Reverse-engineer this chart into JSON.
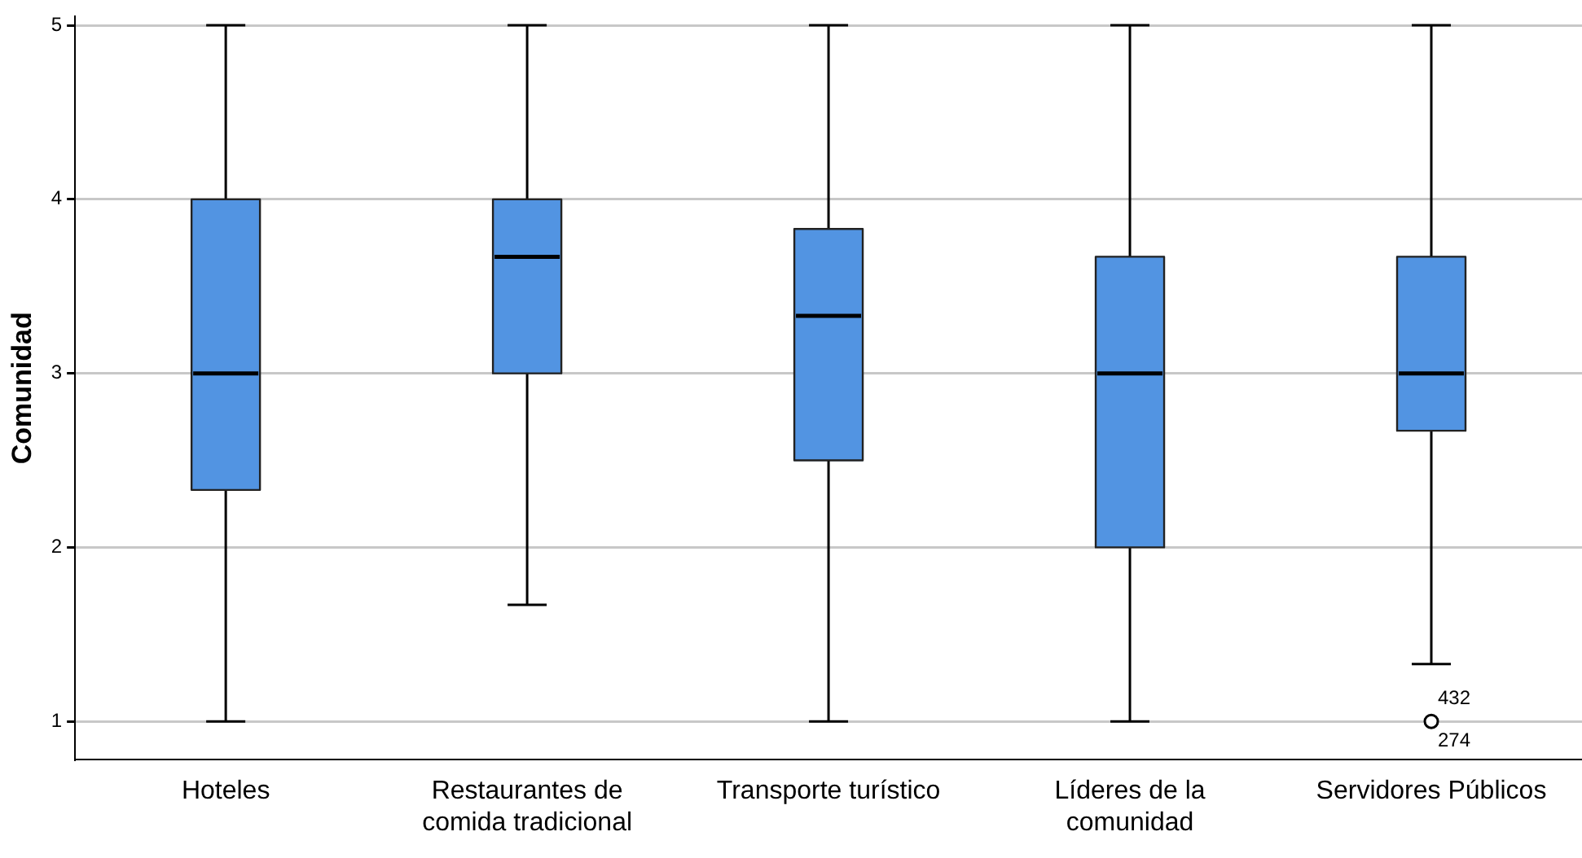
{
  "chart_data": {
    "type": "box",
    "ylabel": "Comunidad",
    "categories": [
      "Hoteles",
      "Restaurantes de comida tradicional",
      "Transporte turístico",
      "Líderes de la comunidad",
      "Servidores Públicos"
    ],
    "color": "#5294e2",
    "boxes": [
      {
        "low": 1,
        "q1": 2.33,
        "median": 3,
        "q3": 4,
        "high": 5
      },
      {
        "low": 1.67,
        "q1": 3,
        "median": 3.67,
        "q3": 4,
        "high": 5
      },
      {
        "low": 1,
        "q1": 2.5,
        "median": 3.33,
        "q3": 3.83,
        "high": 5
      },
      {
        "low": 1,
        "q1": 2,
        "median": 3,
        "q3": 3.67,
        "high": 5
      },
      {
        "low": 1.33,
        "q1": 2.67,
        "median": 3,
        "q3": 3.67,
        "high": 5,
        "outliers": [
          1
        ]
      }
    ],
    "ylim": [
      0.78,
      5.05
    ],
    "yticks": [
      1,
      2,
      3,
      4,
      5
    ],
    "grid": "y",
    "annotations": [
      "432",
      "274"
    ]
  }
}
